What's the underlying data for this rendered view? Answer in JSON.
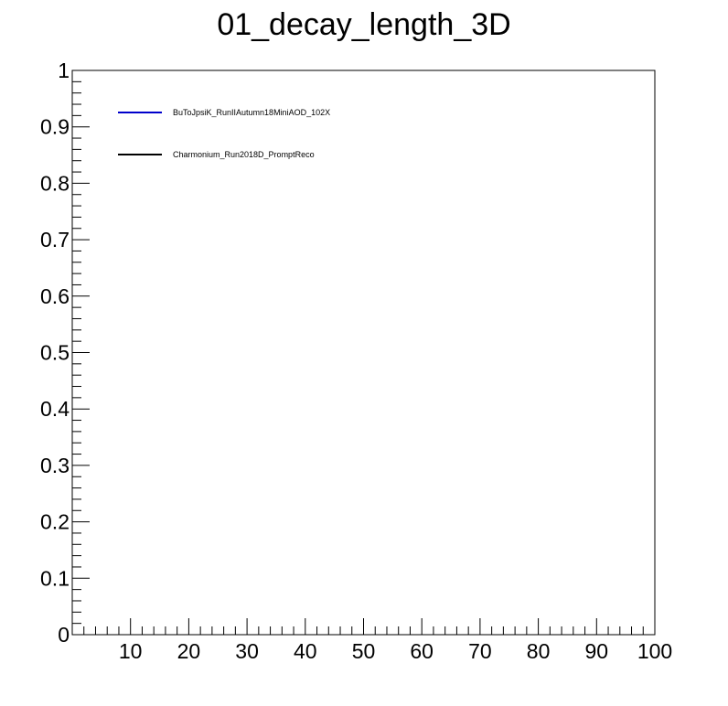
{
  "chart_data": {
    "type": "line",
    "title": "01_decay_length_3D",
    "xlabel": "",
    "ylabel": "",
    "xlim": [
      0,
      100
    ],
    "ylim": [
      0,
      1
    ],
    "x_major_ticks": [
      10,
      20,
      30,
      40,
      50,
      60,
      70,
      80,
      90,
      100
    ],
    "y_major_ticks": [
      0,
      0.1,
      0.2,
      0.3,
      0.4,
      0.5,
      0.6,
      0.7,
      0.8,
      0.9,
      1
    ],
    "x_tick_labels": [
      "10",
      "20",
      "30",
      "40",
      "50",
      "60",
      "70",
      "80",
      "90",
      "100"
    ],
    "y_tick_labels": [
      "0",
      "0.1",
      "0.2",
      "0.3",
      "0.4",
      "0.5",
      "0.6",
      "0.7",
      "0.8",
      "0.9",
      "1"
    ],
    "grid": false,
    "legend_position": "top-left",
    "series": [
      {
        "name": "BuToJpsiK_RunIIAutumn18MiniAOD_102X",
        "color": "#0000cc",
        "x": [],
        "y": []
      },
      {
        "name": "Charmonium_Run2018D_PromptReco",
        "color": "#000000",
        "x": [],
        "y": []
      }
    ]
  }
}
